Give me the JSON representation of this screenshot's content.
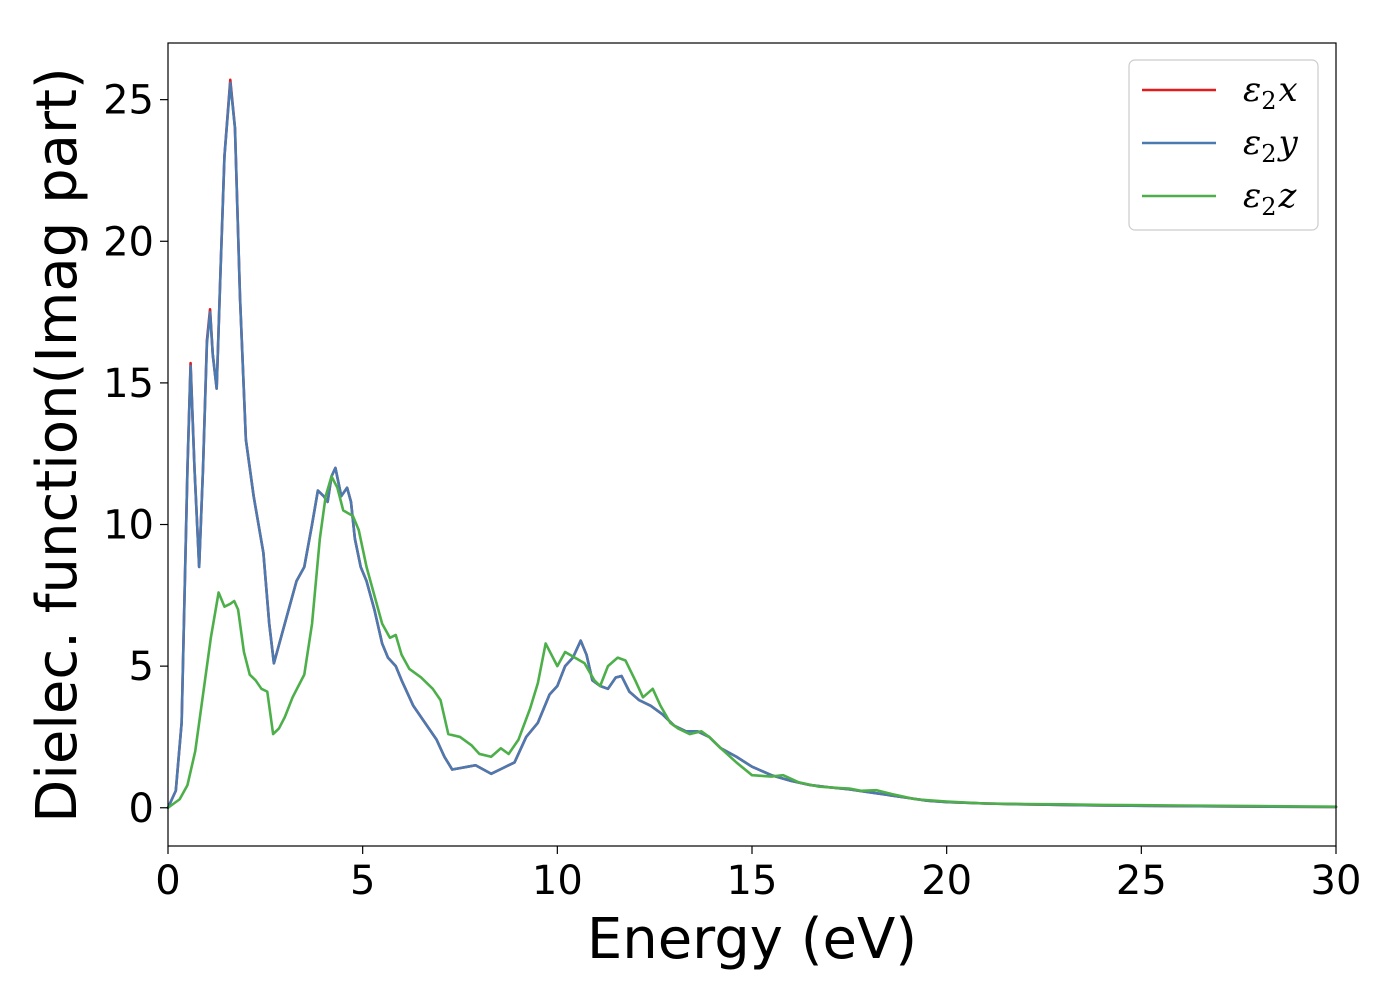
{
  "chart_data": {
    "type": "line",
    "xlabel": "Energy (eV)",
    "ylabel": "Dielec. function(Imag part)",
    "xlim": [
      0,
      30
    ],
    "ylim": [
      -1.35,
      27
    ],
    "x_ticks": [
      0,
      5,
      10,
      15,
      20,
      25,
      30
    ],
    "y_ticks": [
      0,
      5,
      10,
      15,
      20,
      25
    ],
    "grid": false,
    "legend_position": "top-right",
    "series": [
      {
        "name": "ε₂x",
        "legend_base": "ε",
        "legend_sub": "2",
        "legend_suffix": "x",
        "color": "#e41a1c",
        "points": [
          [
            0,
            0
          ],
          [
            0.2,
            0.6
          ],
          [
            0.35,
            3
          ],
          [
            0.5,
            12
          ],
          [
            0.58,
            15.7
          ],
          [
            0.68,
            12
          ],
          [
            0.8,
            8.5
          ],
          [
            0.9,
            12
          ],
          [
            1.0,
            16.5
          ],
          [
            1.08,
            17.6
          ],
          [
            1.15,
            16
          ],
          [
            1.25,
            14.8
          ],
          [
            1.35,
            19
          ],
          [
            1.45,
            23
          ],
          [
            1.6,
            25.7
          ],
          [
            1.72,
            24
          ],
          [
            1.85,
            18
          ],
          [
            2.0,
            13
          ],
          [
            2.2,
            11
          ],
          [
            2.45,
            9
          ],
          [
            2.6,
            6.5
          ],
          [
            2.72,
            5.1
          ],
          [
            2.9,
            6
          ],
          [
            3.1,
            7
          ],
          [
            3.3,
            8
          ],
          [
            3.5,
            8.5
          ],
          [
            3.7,
            10
          ],
          [
            3.85,
            11.2
          ],
          [
            4.0,
            11
          ],
          [
            4.1,
            10.8
          ],
          [
            4.2,
            11.7
          ],
          [
            4.3,
            12
          ],
          [
            4.45,
            11
          ],
          [
            4.6,
            11.3
          ],
          [
            4.7,
            10.8
          ],
          [
            4.8,
            9.5
          ],
          [
            4.95,
            8.5
          ],
          [
            5.1,
            8
          ],
          [
            5.3,
            7
          ],
          [
            5.5,
            5.8
          ],
          [
            5.65,
            5.3
          ],
          [
            5.85,
            5
          ],
          [
            6.0,
            4.5
          ],
          [
            6.3,
            3.6
          ],
          [
            6.6,
            3
          ],
          [
            6.9,
            2.4
          ],
          [
            7.1,
            1.8
          ],
          [
            7.3,
            1.35
          ],
          [
            7.5,
            1.4
          ],
          [
            7.7,
            1.45
          ],
          [
            7.9,
            1.5
          ],
          [
            8.1,
            1.35
          ],
          [
            8.3,
            1.2
          ],
          [
            8.6,
            1.4
          ],
          [
            8.9,
            1.6
          ],
          [
            9.2,
            2.5
          ],
          [
            9.5,
            3
          ],
          [
            9.8,
            4
          ],
          [
            10.0,
            4.3
          ],
          [
            10.2,
            5
          ],
          [
            10.4,
            5.3
          ],
          [
            10.6,
            5.9
          ],
          [
            10.75,
            5.4
          ],
          [
            10.9,
            4.5
          ],
          [
            11.1,
            4.3
          ],
          [
            11.3,
            4.2
          ],
          [
            11.5,
            4.6
          ],
          [
            11.65,
            4.65
          ],
          [
            11.85,
            4.1
          ],
          [
            12.1,
            3.8
          ],
          [
            12.4,
            3.6
          ],
          [
            12.7,
            3.3
          ],
          [
            13.0,
            2.9
          ],
          [
            13.3,
            2.7
          ],
          [
            13.6,
            2.7
          ],
          [
            13.9,
            2.5
          ],
          [
            14.2,
            2.1
          ],
          [
            14.6,
            1.8
          ],
          [
            15.0,
            1.45
          ],
          [
            15.5,
            1.15
          ],
          [
            16.0,
            0.95
          ],
          [
            16.5,
            0.8
          ],
          [
            17.0,
            0.72
          ],
          [
            17.5,
            0.65
          ],
          [
            18.0,
            0.55
          ],
          [
            18.5,
            0.45
          ],
          [
            19.0,
            0.35
          ],
          [
            19.5,
            0.25
          ],
          [
            20.0,
            0.2
          ],
          [
            21.0,
            0.15
          ],
          [
            22.0,
            0.12
          ],
          [
            23.0,
            0.1
          ],
          [
            24.0,
            0.08
          ],
          [
            26.0,
            0.06
          ],
          [
            28.0,
            0.04
          ],
          [
            30.0,
            0.03
          ]
        ]
      },
      {
        "name": "ε₂y",
        "legend_base": "ε",
        "legend_sub": "2",
        "legend_suffix": "y",
        "color": "#4a7ab0",
        "points": [
          [
            0,
            0
          ],
          [
            0.2,
            0.6
          ],
          [
            0.35,
            3
          ],
          [
            0.5,
            12
          ],
          [
            0.58,
            15.6
          ],
          [
            0.68,
            12
          ],
          [
            0.8,
            8.5
          ],
          [
            0.9,
            12
          ],
          [
            1.0,
            16.4
          ],
          [
            1.08,
            17.5
          ],
          [
            1.15,
            16
          ],
          [
            1.25,
            14.8
          ],
          [
            1.35,
            19
          ],
          [
            1.45,
            23
          ],
          [
            1.6,
            25.6
          ],
          [
            1.72,
            24
          ],
          [
            1.85,
            18
          ],
          [
            2.0,
            13
          ],
          [
            2.2,
            11
          ],
          [
            2.45,
            9
          ],
          [
            2.6,
            6.5
          ],
          [
            2.72,
            5.1
          ],
          [
            2.9,
            6
          ],
          [
            3.1,
            7
          ],
          [
            3.3,
            8
          ],
          [
            3.5,
            8.5
          ],
          [
            3.7,
            10
          ],
          [
            3.85,
            11.2
          ],
          [
            4.0,
            11
          ],
          [
            4.1,
            10.8
          ],
          [
            4.2,
            11.7
          ],
          [
            4.3,
            12
          ],
          [
            4.45,
            11
          ],
          [
            4.6,
            11.3
          ],
          [
            4.7,
            10.8
          ],
          [
            4.8,
            9.5
          ],
          [
            4.95,
            8.5
          ],
          [
            5.1,
            8
          ],
          [
            5.3,
            7
          ],
          [
            5.5,
            5.8
          ],
          [
            5.65,
            5.3
          ],
          [
            5.85,
            5
          ],
          [
            6.0,
            4.5
          ],
          [
            6.3,
            3.6
          ],
          [
            6.6,
            3
          ],
          [
            6.9,
            2.4
          ],
          [
            7.1,
            1.8
          ],
          [
            7.3,
            1.35
          ],
          [
            7.5,
            1.4
          ],
          [
            7.7,
            1.45
          ],
          [
            7.9,
            1.5
          ],
          [
            8.1,
            1.35
          ],
          [
            8.3,
            1.2
          ],
          [
            8.6,
            1.4
          ],
          [
            8.9,
            1.6
          ],
          [
            9.2,
            2.5
          ],
          [
            9.5,
            3
          ],
          [
            9.8,
            4
          ],
          [
            10.0,
            4.3
          ],
          [
            10.2,
            5
          ],
          [
            10.4,
            5.3
          ],
          [
            10.6,
            5.9
          ],
          [
            10.75,
            5.4
          ],
          [
            10.9,
            4.5
          ],
          [
            11.1,
            4.3
          ],
          [
            11.3,
            4.2
          ],
          [
            11.5,
            4.6
          ],
          [
            11.65,
            4.65
          ],
          [
            11.85,
            4.1
          ],
          [
            12.1,
            3.8
          ],
          [
            12.4,
            3.6
          ],
          [
            12.7,
            3.3
          ],
          [
            13.0,
            2.9
          ],
          [
            13.3,
            2.7
          ],
          [
            13.6,
            2.7
          ],
          [
            13.9,
            2.5
          ],
          [
            14.2,
            2.1
          ],
          [
            14.6,
            1.8
          ],
          [
            15.0,
            1.45
          ],
          [
            15.5,
            1.15
          ],
          [
            16.0,
            0.95
          ],
          [
            16.5,
            0.8
          ],
          [
            17.0,
            0.72
          ],
          [
            17.5,
            0.65
          ],
          [
            18.0,
            0.55
          ],
          [
            18.5,
            0.45
          ],
          [
            19.0,
            0.35
          ],
          [
            19.5,
            0.25
          ],
          [
            20.0,
            0.2
          ],
          [
            21.0,
            0.15
          ],
          [
            22.0,
            0.12
          ],
          [
            23.0,
            0.1
          ],
          [
            24.0,
            0.08
          ],
          [
            26.0,
            0.06
          ],
          [
            28.0,
            0.04
          ],
          [
            30.0,
            0.03
          ]
        ]
      },
      {
        "name": "ε₂z",
        "legend_base": "ε",
        "legend_sub": "2",
        "legend_suffix": "z",
        "color": "#4daf4a",
        "points": [
          [
            0,
            0
          ],
          [
            0.3,
            0.3
          ],
          [
            0.5,
            0.8
          ],
          [
            0.7,
            2
          ],
          [
            0.9,
            4
          ],
          [
            1.1,
            6
          ],
          [
            1.3,
            7.6
          ],
          [
            1.45,
            7.1
          ],
          [
            1.6,
            7.2
          ],
          [
            1.7,
            7.3
          ],
          [
            1.8,
            7
          ],
          [
            1.95,
            5.5
          ],
          [
            2.1,
            4.7
          ],
          [
            2.25,
            4.5
          ],
          [
            2.4,
            4.2
          ],
          [
            2.55,
            4.1
          ],
          [
            2.7,
            2.6
          ],
          [
            2.85,
            2.8
          ],
          [
            3.0,
            3.2
          ],
          [
            3.2,
            3.9
          ],
          [
            3.5,
            4.7
          ],
          [
            3.7,
            6.5
          ],
          [
            3.9,
            9.5
          ],
          [
            4.05,
            11
          ],
          [
            4.2,
            11.7
          ],
          [
            4.35,
            11.3
          ],
          [
            4.5,
            10.5
          ],
          [
            4.75,
            10.3
          ],
          [
            4.9,
            9.8
          ],
          [
            5.1,
            8.5
          ],
          [
            5.3,
            7.5
          ],
          [
            5.5,
            6.5
          ],
          [
            5.7,
            6.0
          ],
          [
            5.85,
            6.1
          ],
          [
            6.0,
            5.4
          ],
          [
            6.2,
            4.9
          ],
          [
            6.5,
            4.6
          ],
          [
            6.8,
            4.2
          ],
          [
            7.0,
            3.8
          ],
          [
            7.2,
            2.6
          ],
          [
            7.5,
            2.5
          ],
          [
            7.8,
            2.2
          ],
          [
            8.0,
            1.9
          ],
          [
            8.3,
            1.8
          ],
          [
            8.55,
            2.1
          ],
          [
            8.75,
            1.9
          ],
          [
            9.0,
            2.4
          ],
          [
            9.3,
            3.5
          ],
          [
            9.5,
            4.4
          ],
          [
            9.7,
            5.8
          ],
          [
            9.85,
            5.4
          ],
          [
            10.0,
            5
          ],
          [
            10.2,
            5.5
          ],
          [
            10.45,
            5.3
          ],
          [
            10.7,
            5.1
          ],
          [
            10.95,
            4.5
          ],
          [
            11.1,
            4.3
          ],
          [
            11.3,
            5
          ],
          [
            11.55,
            5.3
          ],
          [
            11.75,
            5.2
          ],
          [
            12.0,
            4.5
          ],
          [
            12.2,
            3.9
          ],
          [
            12.45,
            4.2
          ],
          [
            12.65,
            3.6
          ],
          [
            12.9,
            3
          ],
          [
            13.1,
            2.8
          ],
          [
            13.4,
            2.6
          ],
          [
            13.7,
            2.7
          ],
          [
            13.9,
            2.5
          ],
          [
            14.2,
            2.1
          ],
          [
            14.6,
            1.6
          ],
          [
            15.0,
            1.15
          ],
          [
            15.5,
            1.1
          ],
          [
            15.8,
            1.15
          ],
          [
            16.2,
            0.9
          ],
          [
            16.7,
            0.75
          ],
          [
            17.2,
            0.7
          ],
          [
            17.5,
            0.68
          ],
          [
            17.8,
            0.6
          ],
          [
            18.2,
            0.62
          ],
          [
            18.6,
            0.48
          ],
          [
            19.2,
            0.3
          ],
          [
            20.0,
            0.22
          ],
          [
            21.0,
            0.15
          ],
          [
            22.0,
            0.13
          ],
          [
            23.0,
            0.12
          ],
          [
            24.0,
            0.1
          ],
          [
            26.0,
            0.08
          ],
          [
            28.0,
            0.06
          ],
          [
            30.0,
            0.04
          ]
        ]
      }
    ]
  }
}
